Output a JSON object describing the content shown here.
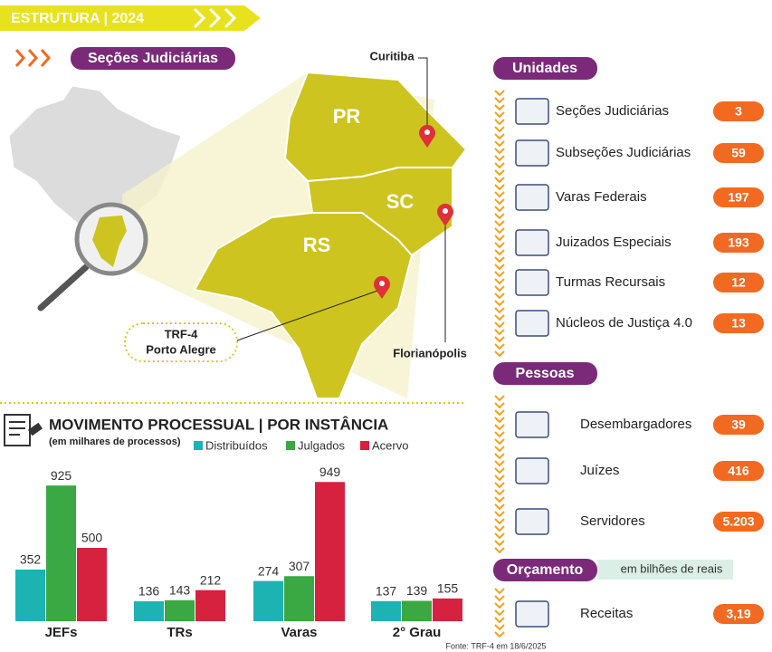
{
  "header": {
    "title": "ESTRUTURA | 2024"
  },
  "map": {
    "section_title": "Seções Judiciárias",
    "states": [
      "PR",
      "SC",
      "RS"
    ],
    "cities": [
      "Curitiba",
      "Florianópolis"
    ],
    "headquarters": [
      "TRF-4",
      "Porto Alegre"
    ]
  },
  "unidades": {
    "title": "Unidades",
    "rows": [
      [
        "Seções Judiciárias",
        "3"
      ],
      [
        "Subseções Judiciárias",
        "59"
      ],
      [
        "Varas Federais",
        "197"
      ],
      [
        "Juizados Especiais",
        "193"
      ],
      [
        "Turmas Recursais",
        "12"
      ],
      [
        "Núcleos de Justiça 4.0",
        "13"
      ]
    ]
  },
  "pessoas": {
    "title": "Pessoas",
    "rows": [
      [
        "Desembargadores",
        "39"
      ],
      [
        "Juízes",
        "416"
      ],
      [
        "Servidores",
        "5.203"
      ]
    ]
  },
  "orcamento": {
    "title": "Orçamento",
    "note": "em bilhões de reais",
    "rows": [
      [
        "Receitas",
        "3,19"
      ]
    ]
  },
  "footer": {
    "source": "Fonte: TRF-4 em 18/6/2025"
  },
  "chart_data": {
    "type": "bar",
    "title": "MOVIMENTO PROCESSUAL | POR INSTÂNCIA",
    "subtitle": "(em milhares de processos)",
    "categories": [
      "JEFs",
      "TRs",
      "Varas",
      "2° Grau"
    ],
    "series": [
      {
        "name": "Distribuídos",
        "color": "#1db3b3",
        "values": [
          352,
          136,
          274,
          137
        ]
      },
      {
        "name": "Julgados",
        "color": "#3aa843",
        "values": [
          925,
          143,
          307,
          139
        ]
      },
      {
        "name": "Acervo",
        "color": "#d6223f",
        "values": [
          500,
          212,
          949,
          155
        ]
      }
    ]
  }
}
